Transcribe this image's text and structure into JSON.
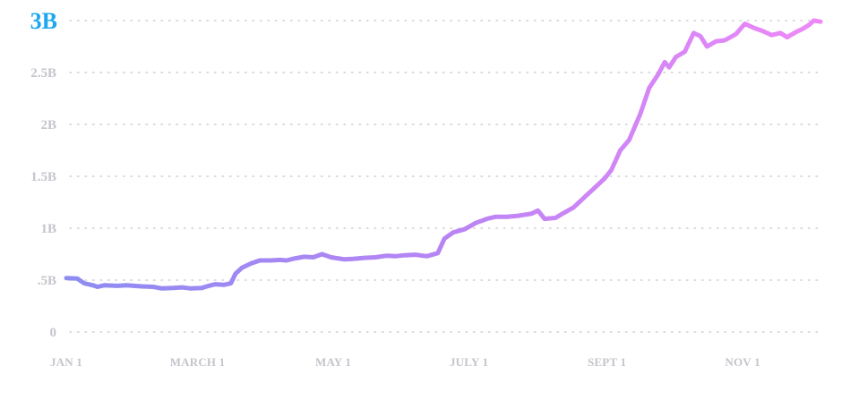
{
  "chart_data": {
    "type": "line",
    "ylim": [
      0,
      3000000000
    ],
    "y_ticks": [
      {
        "value": 0,
        "label": "0"
      },
      {
        "value": 500000000,
        "label": ".5B"
      },
      {
        "value": 1000000000,
        "label": "1B"
      },
      {
        "value": 1500000000,
        "label": "1.5B"
      },
      {
        "value": 2000000000,
        "label": "2B"
      },
      {
        "value": 2500000000,
        "label": "2.5B"
      },
      {
        "value": 3000000000,
        "label": "3B"
      }
    ],
    "x_ticks": [
      {
        "day": 1,
        "label": "JAN 1"
      },
      {
        "day": 60,
        "label": "MARCH 1"
      },
      {
        "day": 121,
        "label": "MAY 1"
      },
      {
        "day": 182,
        "label": "JULY 1"
      },
      {
        "day": 244,
        "label": "SEPT 1"
      },
      {
        "day": 305,
        "label": "NOV 1"
      }
    ],
    "grid": true,
    "line_gradient": [
      "#8c8cf2",
      "#b884f4",
      "#ee88f8"
    ],
    "top_tick_color": "#1ea7f0",
    "series": [
      {
        "points": [
          [
            1,
            520000000
          ],
          [
            6,
            515000000
          ],
          [
            9,
            470000000
          ],
          [
            13,
            450000000
          ],
          [
            15,
            435000000
          ],
          [
            18,
            450000000
          ],
          [
            24,
            445000000
          ],
          [
            28,
            450000000
          ],
          [
            35,
            440000000
          ],
          [
            40,
            435000000
          ],
          [
            44,
            420000000
          ],
          [
            49,
            425000000
          ],
          [
            53,
            430000000
          ],
          [
            57,
            420000000
          ],
          [
            62,
            425000000
          ],
          [
            65,
            445000000
          ],
          [
            68,
            460000000
          ],
          [
            72,
            455000000
          ],
          [
            75,
            470000000
          ],
          [
            77,
            560000000
          ],
          [
            80,
            620000000
          ],
          [
            84,
            660000000
          ],
          [
            88,
            690000000
          ],
          [
            93,
            690000000
          ],
          [
            97,
            695000000
          ],
          [
            100,
            690000000
          ],
          [
            104,
            710000000
          ],
          [
            108,
            725000000
          ],
          [
            112,
            720000000
          ],
          [
            116,
            750000000
          ],
          [
            120,
            720000000
          ],
          [
            126,
            700000000
          ],
          [
            130,
            705000000
          ],
          [
            135,
            715000000
          ],
          [
            140,
            720000000
          ],
          [
            145,
            735000000
          ],
          [
            149,
            730000000
          ],
          [
            153,
            740000000
          ],
          [
            158,
            745000000
          ],
          [
            163,
            730000000
          ],
          [
            168,
            760000000
          ],
          [
            171,
            900000000
          ],
          [
            175,
            960000000
          ],
          [
            180,
            990000000
          ],
          [
            185,
            1050000000
          ],
          [
            190,
            1090000000
          ],
          [
            194,
            1110000000
          ],
          [
            199,
            1110000000
          ],
          [
            204,
            1120000000
          ],
          [
            210,
            1140000000
          ],
          [
            213,
            1170000000
          ],
          [
            216,
            1090000000
          ],
          [
            221,
            1100000000
          ],
          [
            224,
            1140000000
          ],
          [
            229,
            1200000000
          ],
          [
            234,
            1300000000
          ],
          [
            238,
            1380000000
          ],
          [
            243,
            1480000000
          ],
          [
            246,
            1560000000
          ],
          [
            250,
            1750000000
          ],
          [
            254,
            1850000000
          ],
          [
            259,
            2100000000
          ],
          [
            263,
            2350000000
          ],
          [
            267,
            2480000000
          ],
          [
            270,
            2600000000
          ],
          [
            272,
            2550000000
          ],
          [
            275,
            2650000000
          ],
          [
            279,
            2700000000
          ],
          [
            283,
            2880000000
          ],
          [
            286,
            2850000000
          ],
          [
            289,
            2750000000
          ],
          [
            293,
            2800000000
          ],
          [
            297,
            2810000000
          ],
          [
            302,
            2870000000
          ],
          [
            306,
            2970000000
          ],
          [
            310,
            2930000000
          ],
          [
            314,
            2900000000
          ],
          [
            318,
            2860000000
          ],
          [
            322,
            2880000000
          ],
          [
            325,
            2840000000
          ],
          [
            329,
            2890000000
          ],
          [
            332,
            2920000000
          ],
          [
            335,
            2960000000
          ],
          [
            337,
            3000000000
          ],
          [
            340,
            2990000000
          ]
        ]
      }
    ]
  }
}
